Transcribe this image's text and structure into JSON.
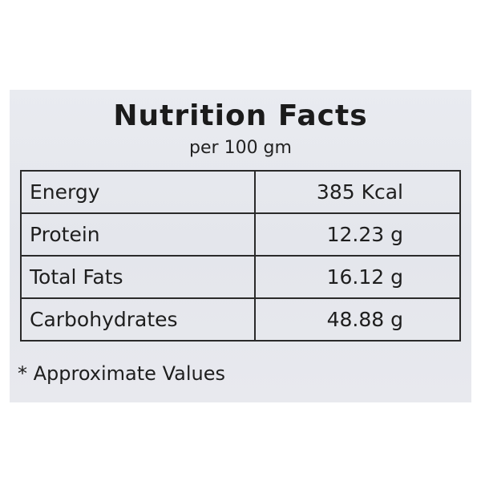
{
  "header": {
    "title": "Nutrition Facts",
    "subtitle": "per 100 gm"
  },
  "table": {
    "rows": [
      [
        "Energy",
        "385 Kcal"
      ],
      [
        "Protein",
        "12.23 g"
      ],
      [
        "Total Fats",
        "16.12 g"
      ],
      [
        "Carbohydrates",
        "48.88 g"
      ]
    ]
  },
  "footnote": "* Approximate Values"
}
